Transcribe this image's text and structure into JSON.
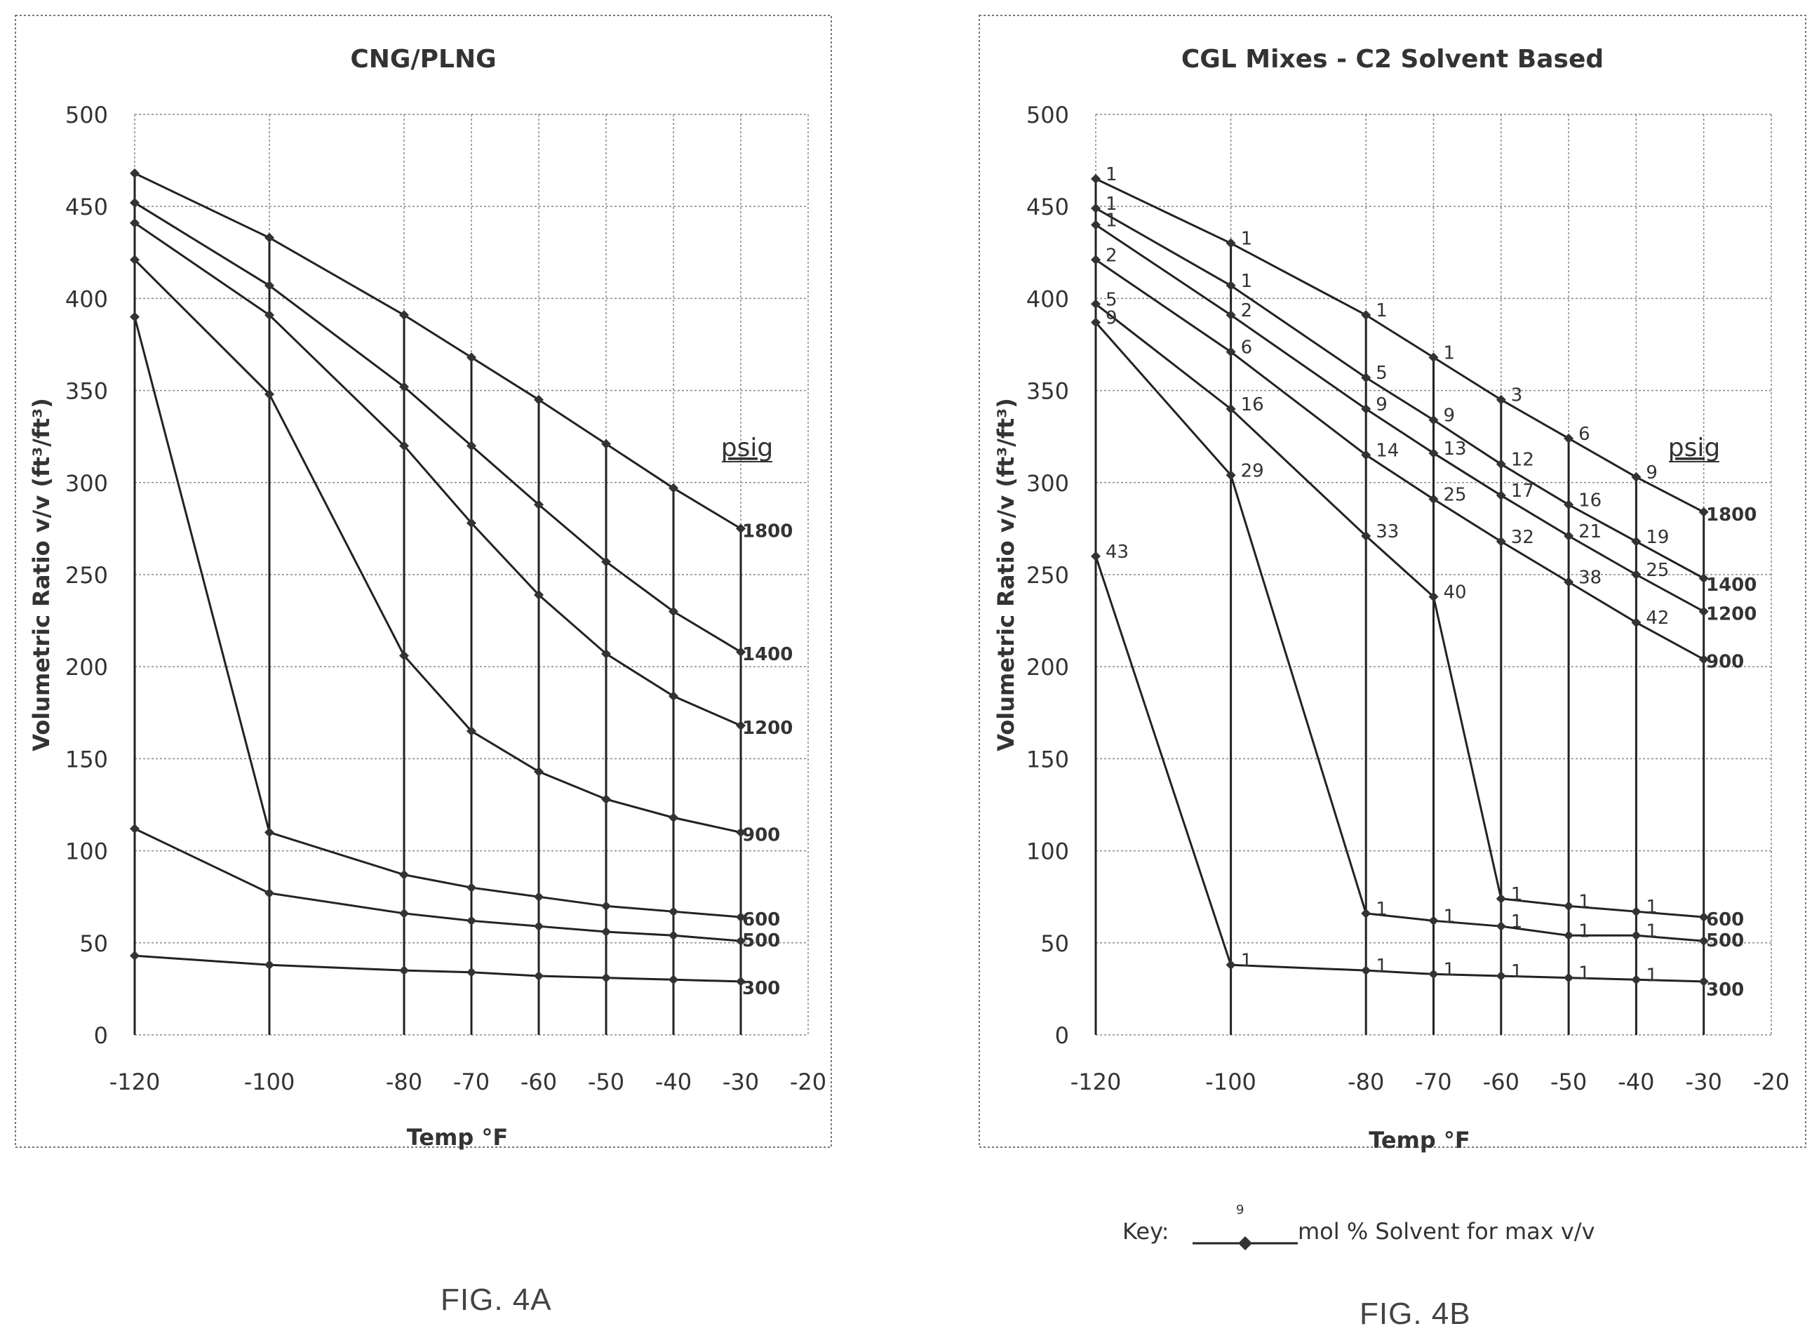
{
  "chart_data": [
    {
      "id": "fig4a",
      "type": "line",
      "title": "CNG/PLNG",
      "xlabel": "Temp °F",
      "ylabel": "Volumetric Ratio v/v (ft³/ft³)",
      "xlim": [
        -120,
        -20
      ],
      "ylim": [
        0,
        500
      ],
      "x_ticks": [
        -120,
        -100,
        -80,
        -70,
        -60,
        -50,
        -40,
        -30,
        -20
      ],
      "y_ticks": [
        0,
        50,
        100,
        150,
        200,
        250,
        300,
        350,
        400,
        450,
        500
      ],
      "grid": true,
      "series_legend_title": "psig",
      "x": [
        -120,
        -100,
        -80,
        -70,
        -60,
        -50,
        -40,
        -30
      ],
      "series": [
        {
          "name": "1800",
          "values": [
            468,
            433,
            391,
            368,
            345,
            321,
            297,
            275
          ]
        },
        {
          "name": "1400",
          "values": [
            452,
            407,
            352,
            320,
            288,
            257,
            230,
            208
          ]
        },
        {
          "name": "1200",
          "values": [
            441,
            391,
            320,
            278,
            239,
            207,
            184,
            168
          ]
        },
        {
          "name": "900",
          "values": [
            421,
            348,
            206,
            165,
            143,
            128,
            118,
            110
          ]
        },
        {
          "name": "600",
          "values": [
            390,
            110,
            87,
            80,
            75,
            70,
            67,
            64
          ]
        },
        {
          "name": "500",
          "values": [
            112,
            77,
            66,
            62,
            59,
            56,
            54,
            51
          ]
        },
        {
          "name": "300",
          "values": [
            43,
            38,
            35,
            34,
            32,
            31,
            30,
            29
          ]
        }
      ]
    },
    {
      "id": "fig4b",
      "type": "line",
      "title": "CGL Mixes - C2 Solvent Based",
      "xlabel": "Temp °F",
      "ylabel": "Volumetric Ratio v/v (ft³/ft³)",
      "xlim": [
        -120,
        -20
      ],
      "ylim": [
        0,
        500
      ],
      "x_ticks": [
        -120,
        -100,
        -80,
        -70,
        -60,
        -50,
        -40,
        -30,
        -20
      ],
      "y_ticks": [
        0,
        50,
        100,
        150,
        200,
        250,
        300,
        350,
        400,
        450,
        500
      ],
      "grid": true,
      "series_legend_title": "psig",
      "x": [
        -120,
        -100,
        -80,
        -70,
        -60,
        -50,
        -40,
        -30
      ],
      "series": [
        {
          "name": "1800",
          "values": [
            465,
            430,
            391,
            368,
            345,
            324,
            303,
            284
          ],
          "point_labels": [
            "1",
            "1",
            "1",
            "1",
            "3",
            "6",
            "9",
            ""
          ]
        },
        {
          "name": "1400",
          "values": [
            449,
            407,
            357,
            334,
            310,
            288,
            268,
            248
          ],
          "point_labels": [
            "1",
            "1",
            "5",
            "9",
            "12",
            "16",
            "19",
            ""
          ]
        },
        {
          "name": "1200",
          "values": [
            440,
            391,
            340,
            316,
            293,
            271,
            250,
            230
          ],
          "point_labels": [
            "1",
            "2",
            "9",
            "13",
            "17",
            "21",
            "25",
            ""
          ]
        },
        {
          "name": "900",
          "values": [
            421,
            371,
            315,
            291,
            268,
            246,
            224,
            204
          ],
          "point_labels": [
            "2",
            "6",
            "14",
            "25",
            "32",
            "38",
            "42",
            ""
          ]
        },
        {
          "name": "600",
          "values": [
            397,
            340,
            271,
            238,
            74,
            70,
            67,
            64
          ],
          "point_labels": [
            "5",
            "16",
            "33",
            "40",
            "1",
            "1",
            "1",
            ""
          ]
        },
        {
          "name": "500",
          "values": [
            387,
            304,
            66,
            62,
            59,
            54,
            54,
            51
          ],
          "point_labels": [
            "9",
            "29",
            "1",
            "1",
            "1",
            "1",
            "1",
            ""
          ]
        },
        {
          "name": "300",
          "values": [
            260,
            38,
            35,
            33,
            32,
            31,
            30,
            29
          ],
          "point_labels": [
            "43",
            "1",
            "1",
            "1",
            "1",
            "1",
            "1",
            ""
          ]
        }
      ]
    }
  ],
  "captions": {
    "fig4a": "FIG. 4A",
    "fig4b": "FIG. 4B"
  },
  "key": {
    "label": "Key:",
    "marker_number": "9",
    "description": "mol % Solvent for max v/v"
  }
}
